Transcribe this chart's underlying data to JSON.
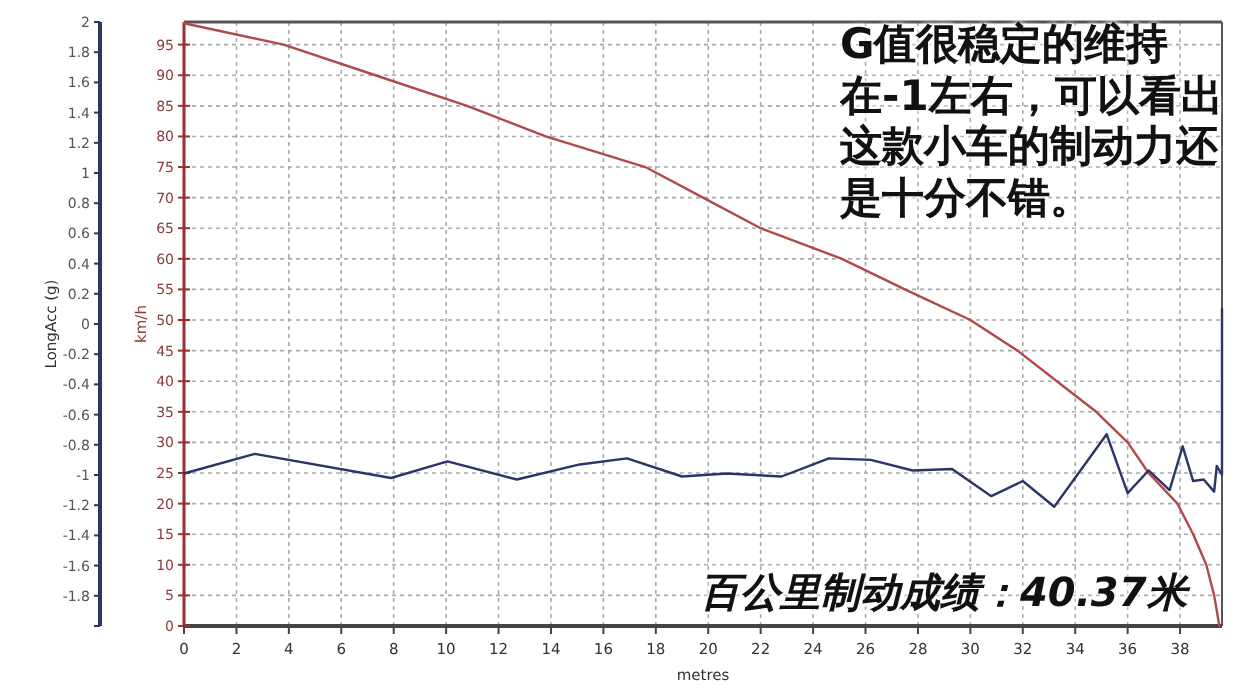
{
  "chart_data": {
    "type": "line",
    "xlabel": "metres",
    "ylabel": "LongAcc (g)",
    "y2label": "km/h",
    "annotations": [
      "G值很稳定的维持在-1左右，可以看出这款小车的制动力还是十分不错。",
      "百公里制动成绩：40.37米"
    ],
    "xlim": [
      0,
      39.6
    ],
    "xticks": [
      0,
      2,
      4,
      6,
      8,
      10,
      12,
      14,
      16,
      18,
      20,
      22,
      24,
      26,
      28,
      30,
      32,
      34,
      36,
      38
    ],
    "ylim": [
      -2,
      2
    ],
    "yticks": [
      {
        "value": -2,
        "label": null
      },
      -1.8,
      -1.6,
      -1.4,
      -1.2,
      -1,
      -0.8,
      -0.6,
      -0.4,
      -0.2,
      0,
      0.2,
      0.4,
      0.6,
      0.8,
      1,
      1.2,
      1.4,
      1.6,
      1.8,
      2
    ],
    "y2lim": [
      0,
      98.7
    ],
    "y2ticks": [
      0,
      5,
      10,
      15,
      20,
      25,
      30,
      35,
      40,
      45,
      50,
      55,
      60,
      65,
      70,
      75,
      80,
      85,
      90,
      95
    ],
    "grid": true,
    "series": [
      {
        "color": "#b04a4a",
        "axis": "y2",
        "x": [
          0,
          3.8,
          7.3,
          10.8,
          13.8,
          17.6,
          19.8,
          22,
          25.1,
          27.5,
          30,
          31.8,
          33.3,
          34.8,
          36,
          36.8,
          37.9,
          38.5,
          39,
          39.3,
          39.5
        ],
        "values": [
          98.5,
          95,
          90,
          85,
          80,
          75,
          70,
          65,
          60,
          55,
          50,
          45,
          40,
          35,
          30,
          25,
          20,
          15,
          10,
          5,
          0
        ]
      },
      {
        "color": "#2b3566",
        "x": [
          0,
          2.7,
          7.9,
          10.05,
          12.7,
          15.1,
          16.9,
          19,
          20.7,
          22.8,
          24.6,
          26.2,
          27.8,
          29.3,
          30.8,
          32,
          33.2,
          35.2,
          36,
          36.8,
          37.6,
          38.1,
          38.5,
          38.9,
          39.3,
          39.4,
          39.6,
          39.6
        ],
        "values": [
          -0.99,
          -0.86,
          -1.02,
          -0.91,
          -1.03,
          -0.93,
          -0.89,
          -1.01,
          -0.99,
          -1.01,
          -0.89,
          -0.9,
          -0.97,
          -0.96,
          -1.14,
          -1.04,
          -1.21,
          -0.73,
          -1.12,
          -0.97,
          -1.1,
          -0.81,
          -1.04,
          -1.03,
          -1.11,
          -0.94,
          -1.0,
          0.1
        ]
      }
    ]
  }
}
